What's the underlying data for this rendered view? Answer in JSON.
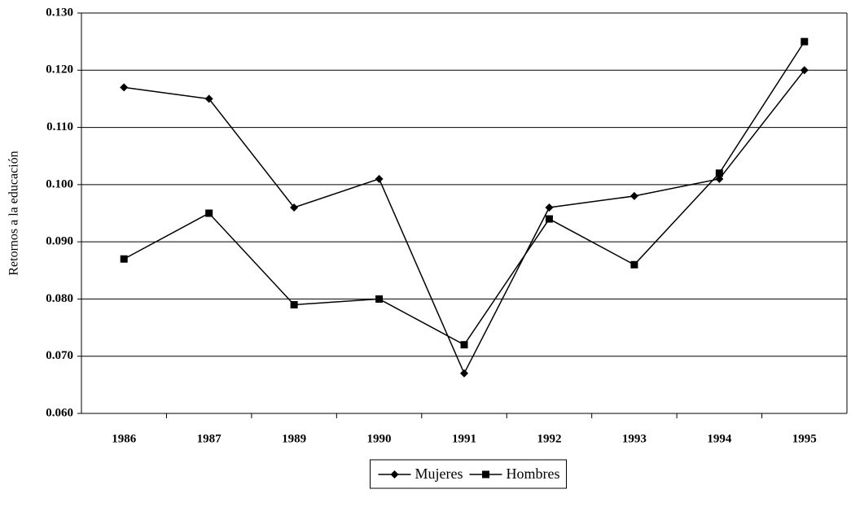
{
  "chart_data": {
    "type": "line",
    "y_label": "Retornos a la educación",
    "categories": [
      "1986",
      "1987",
      "1989",
      "1990",
      "1991",
      "1992",
      "1993",
      "1994",
      "1995"
    ],
    "series": [
      {
        "name": "Mujeres",
        "color": "#000000",
        "marker": "diamond",
        "values": [
          0.117,
          0.115,
          0.096,
          0.101,
          0.067,
          0.096,
          0.098,
          0.101,
          0.12
        ]
      },
      {
        "name": "Hombres",
        "color": "#000000",
        "marker": "square",
        "values": [
          0.087,
          0.095,
          0.079,
          0.08,
          0.072,
          0.094,
          0.086,
          0.102,
          0.125
        ]
      }
    ],
    "ylim": [
      0.06,
      0.13
    ],
    "yticks": [
      {
        "value": 0.06,
        "label": "0.060"
      },
      {
        "value": 0.07,
        "label": "0.070"
      },
      {
        "value": 0.08,
        "label": "0.080"
      },
      {
        "value": 0.09,
        "label": "0.090"
      },
      {
        "value": 0.1,
        "label": "0.100"
      },
      {
        "value": 0.11,
        "label": "0.110"
      },
      {
        "value": 0.12,
        "label": "0.120"
      },
      {
        "value": 0.13,
        "label": "0.130"
      }
    ],
    "grid": true,
    "legend": "bottom"
  }
}
